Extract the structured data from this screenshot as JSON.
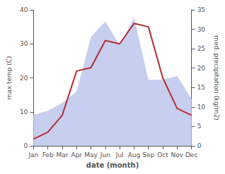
{
  "chart_data": {
    "type": "line",
    "categories": [
      "Jan",
      "Feb",
      "Mar",
      "Apr",
      "May",
      "Jun",
      "Jul",
      "Aug",
      "Sep",
      "Oct",
      "Nov",
      "Dec"
    ],
    "xlabel": "date (month)",
    "ylabel": "max temp (C)",
    "y2label": "med. precipitation (kg/m2)",
    "series": [
      {
        "type": "area",
        "color": "#c8cef0",
        "axis": "y2",
        "values": [
          8,
          9,
          11,
          14,
          28,
          32,
          26,
          33,
          17,
          17,
          18,
          12
        ]
      },
      {
        "type": "line",
        "color": "#b03030",
        "values": [
          2,
          4,
          9,
          22,
          23,
          31,
          30,
          36,
          35,
          20,
          11,
          9
        ]
      }
    ],
    "ylim": [
      0,
      40
    ],
    "yticks": [
      0,
      10,
      20,
      30,
      40
    ],
    "y2lim": [
      0,
      35
    ],
    "y2ticks": [
      0,
      5,
      10,
      15,
      20,
      25,
      30,
      35
    ],
    "grid": false
  }
}
